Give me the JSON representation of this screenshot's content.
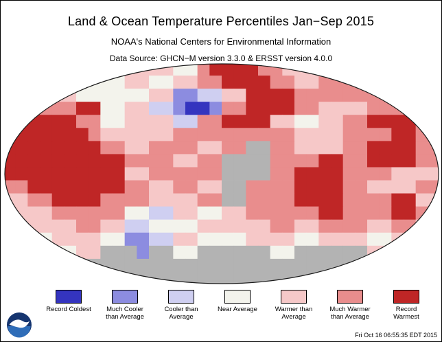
{
  "header": {
    "title": "Land & Ocean Temperature Percentiles Jan−Sep 2015",
    "subtitle": "NOAA's National Centers for Environmental Information",
    "data_source": "Data Source: GHCN−M version 3.3.0 & ERSST version 4.0.0"
  },
  "map": {
    "outline_color": "#1a1a1a",
    "missing_data_color": "#b3b3b3",
    "palette": {
      "R": "#3434bf",
      "M": "#8c8ce0",
      "c": "#cfcff1",
      "n": "#f3f3ec",
      "w": "#f6c8c8",
      "m": "#e98d8d",
      "r": "#bf2626",
      "g": "#b3b3b3"
    },
    "grid": [
      "ggggnnnnwwwwwwnnmrrrrmmwwwwwmmgggggg",
      "ggwwwwnnnnwwnnwwmmrrrrmmwwmmmmwwwwgg",
      "wwwwwwnnnnnnwwMMccwwrrrrmmmmmmmmwwww",
      "mmmmmmrrnnwwccMRRMmmrrrrmmwwwwmmmmww",
      "rrrrrrmmnnwwwwccmmrrrrwwnnwwmmrrrrmm",
      "rrrrrrrmwwwwwwmmmmmmmmmmwwwwmmmmrrmm",
      "rrrrrrrrmmwwmmmmwwmmggmmwwwwmmrrrrmm",
      "rrrrrrrrrrmmmmwwmmggggmmmmrrmmrrrrmm",
      "rrrrrrrrrrwwmmmmmmggggmmrrrrmmmmwwww",
      "mmrrrrrrrrmmwwmmwwggmmmmrrrrmmwwwwmm",
      "wwmmrrrrmmmmwwwwmmggmmmmrrrrmmmmrrww",
      "wwwwmmmmmmnnccwwnnwwmmmmmmrrmmmmrrmm",
      "wwwwwwmmwwccnnnnwwwwwwmmwwmmmmwwmmww",
      "wwnnwwwwnnMMccwwnnnnwwwwnnwwwwnnwwww",
      "ggggnnwwgggMggnnggggggnnggggggwwgggg",
      "gggggggggggggggggggggggggggggggggggg",
      "gggggggggggggggggggggggggggggggggggg"
    ]
  },
  "legend": {
    "items": [
      {
        "label": "Record Coldest",
        "color": "#3434bf"
      },
      {
        "label": "Much Cooler than Average",
        "color": "#8c8ce0"
      },
      {
        "label": "Cooler than Average",
        "color": "#cfcff1"
      },
      {
        "label": "Near Average",
        "color": "#f3f3ec"
      },
      {
        "label": "Warmer than Average",
        "color": "#f6c8c8"
      },
      {
        "label": "Much Warmer than Average",
        "color": "#e98d8d"
      },
      {
        "label": "Record Warmest",
        "color": "#bf2626"
      }
    ]
  },
  "footer": {
    "timestamp": "Fri Oct 16 06:55:35 EDT 2015"
  }
}
